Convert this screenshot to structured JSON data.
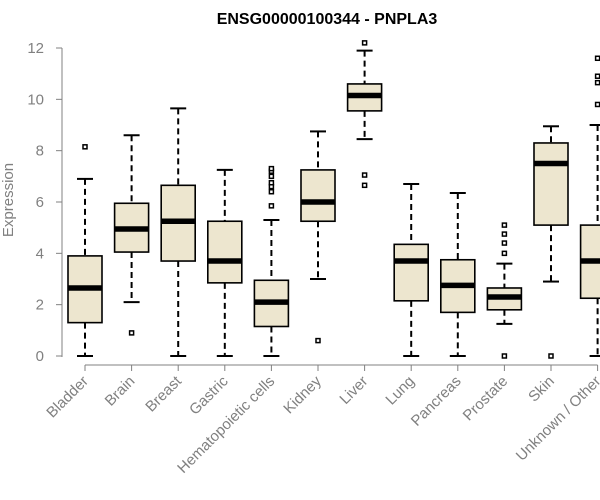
{
  "chart_data": {
    "type": "boxplot",
    "title": "ENSG00000100344 - PNPLA3",
    "xlabel": "",
    "ylabel": "Expression",
    "ylim": [
      0,
      12.2
    ],
    "yticks": [
      "0",
      "2",
      "4",
      "6",
      "8",
      "10",
      "12"
    ],
    "categories": [
      "Bladder",
      "Brain",
      "Breast",
      "Gastric",
      "Hematopoietic cells",
      "Kidney",
      "Liver",
      "Lung",
      "Pancreas",
      "Prostate",
      "Skin",
      "Unknown / Other"
    ],
    "boxes": [
      {
        "min": 0,
        "q1": 1.3,
        "median": 2.65,
        "q3": 3.9,
        "max": 6.9,
        "outliers": [
          8.15
        ]
      },
      {
        "min": 2.1,
        "q1": 4.05,
        "median": 4.95,
        "q3": 5.95,
        "max": 8.6,
        "outliers": [
          0.9
        ]
      },
      {
        "min": 0,
        "q1": 3.7,
        "median": 5.25,
        "q3": 6.65,
        "max": 9.65,
        "outliers": []
      },
      {
        "min": 0,
        "q1": 2.85,
        "median": 3.7,
        "q3": 5.25,
        "max": 7.25,
        "outliers": []
      },
      {
        "min": 0,
        "q1": 1.15,
        "median": 2.1,
        "q3": 2.95,
        "max": 5.3,
        "outliers": [
          5.85,
          6.4,
          6.6,
          6.75,
          7.0,
          7.2,
          7.3
        ]
      },
      {
        "min": 3.0,
        "q1": 5.25,
        "median": 6.0,
        "q3": 7.25,
        "max": 8.75,
        "outliers": [
          0.6
        ]
      },
      {
        "min": 8.45,
        "q1": 9.55,
        "median": 10.15,
        "q3": 10.6,
        "max": 11.9,
        "outliers": [
          6.65,
          7.05,
          12.2
        ]
      },
      {
        "min": 0,
        "q1": 2.15,
        "median": 3.7,
        "q3": 4.35,
        "max": 6.7,
        "outliers": []
      },
      {
        "min": 0,
        "q1": 1.7,
        "median": 2.75,
        "q3": 3.75,
        "max": 6.35,
        "outliers": []
      },
      {
        "min": 1.25,
        "q1": 1.8,
        "median": 2.3,
        "q3": 2.65,
        "max": 3.6,
        "outliers": [
          0,
          4.0,
          4.4,
          4.75,
          5.1
        ]
      },
      {
        "min": 2.9,
        "q1": 5.1,
        "median": 7.5,
        "q3": 8.3,
        "max": 8.95,
        "outliers": [
          0
        ]
      },
      {
        "min": 0,
        "q1": 2.25,
        "median": 3.7,
        "q3": 5.1,
        "max": 9.0,
        "outliers": [
          9.8,
          10.65,
          10.9,
          11.6
        ]
      }
    ]
  }
}
